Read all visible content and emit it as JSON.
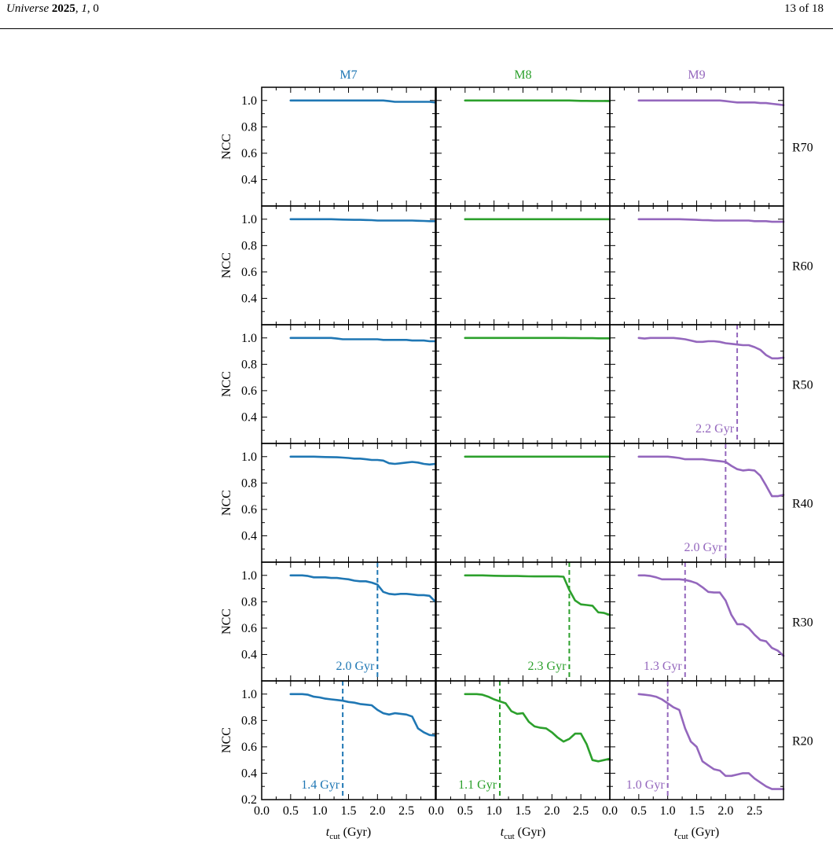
{
  "header": {
    "journal": "Universe",
    "year": "2025",
    "volume": "1",
    "article": "0",
    "page": "13 of 18"
  },
  "figure": {
    "columns": [
      {
        "label": "M7",
        "color": "#1f77b4"
      },
      {
        "label": "M8",
        "color": "#2ca02c"
      },
      {
        "label": "M9",
        "color": "#9467bd"
      }
    ],
    "rows": [
      "R70",
      "R60",
      "R50",
      "R40",
      "R30",
      "R20"
    ],
    "ylabel": "NCC",
    "xlabel_main": "t",
    "xlabel_sub": "cut",
    "xlabel_unit": "(Gyr)"
  },
  "chart_data": {
    "type": "line",
    "xlim": [
      0,
      3.0
    ],
    "ylim": [
      0.2,
      1.1
    ],
    "xticks": [
      0.0,
      0.5,
      1.0,
      1.5,
      2.0,
      2.5
    ],
    "xtick_labels": [
      "0.0",
      "0.5",
      "1.0",
      "1.5",
      "2.0",
      "2.5"
    ],
    "yticks_labeled": [
      1.0,
      0.8,
      0.6,
      0.4
    ],
    "bottom_row_yticks": [
      1.0,
      0.8,
      0.6,
      0.4,
      0.2
    ],
    "x": [
      0.5,
      0.6,
      0.7,
      0.8,
      0.9,
      1.0,
      1.1,
      1.2,
      1.3,
      1.4,
      1.5,
      1.6,
      1.7,
      1.8,
      1.9,
      2.0,
      2.1,
      2.2,
      2.3,
      2.4,
      2.5,
      2.6,
      2.7,
      2.8,
      2.9,
      3.0
    ],
    "panels": [
      {
        "row": "R70",
        "col": "M7",
        "y": [
          1.0,
          1.0,
          1.0,
          1.0,
          1.0,
          1.0,
          1.0,
          1.0,
          1.0,
          1.0,
          1.0,
          1.0,
          1.0,
          1.0,
          1.0,
          1.0,
          1.0,
          0.995,
          0.99,
          0.99,
          0.99,
          0.99,
          0.99,
          0.99,
          0.99,
          0.985
        ]
      },
      {
        "row": "R70",
        "col": "M8",
        "y": [
          1.0,
          1.0,
          1.0,
          1.0,
          1.0,
          1.0,
          1.0,
          1.0,
          1.0,
          1.0,
          1.0,
          1.0,
          1.0,
          1.0,
          1.0,
          1.0,
          1.0,
          1.0,
          1.0,
          0.998,
          0.997,
          0.997,
          0.996,
          0.996,
          0.996,
          0.995
        ]
      },
      {
        "row": "R70",
        "col": "M9",
        "y": [
          1.0,
          1.0,
          1.0,
          1.0,
          1.0,
          1.0,
          1.0,
          1.0,
          1.0,
          1.0,
          1.0,
          1.0,
          1.0,
          1.0,
          1.0,
          0.995,
          0.99,
          0.985,
          0.985,
          0.985,
          0.985,
          0.98,
          0.98,
          0.975,
          0.97,
          0.965
        ]
      },
      {
        "row": "R60",
        "col": "M7",
        "y": [
          1.0,
          1.0,
          1.0,
          1.0,
          1.0,
          1.0,
          1.0,
          1.0,
          0.998,
          0.997,
          0.996,
          0.995,
          0.995,
          0.994,
          0.993,
          0.99,
          0.99,
          0.99,
          0.99,
          0.99,
          0.99,
          0.99,
          0.988,
          0.987,
          0.985,
          0.985
        ]
      },
      {
        "row": "R60",
        "col": "M8",
        "y": [
          1.0,
          1.0,
          1.0,
          1.0,
          1.0,
          1.0,
          1.0,
          1.0,
          1.0,
          1.0,
          1.0,
          1.0,
          1.0,
          1.0,
          1.0,
          1.0,
          1.0,
          1.0,
          1.0,
          1.0,
          1.0,
          1.0,
          1.0,
          1.0,
          1.0,
          1.0
        ]
      },
      {
        "row": "R60",
        "col": "M9",
        "y": [
          1.0,
          1.0,
          1.0,
          1.0,
          1.0,
          1.0,
          1.0,
          1.0,
          0.998,
          0.997,
          0.995,
          0.993,
          0.992,
          0.99,
          0.99,
          0.99,
          0.99,
          0.99,
          0.99,
          0.99,
          0.985,
          0.985,
          0.985,
          0.98,
          0.98,
          0.98
        ]
      },
      {
        "row": "R50",
        "col": "M7",
        "y": [
          1.0,
          1.0,
          1.0,
          1.0,
          1.0,
          1.0,
          1.0,
          1.0,
          0.995,
          0.99,
          0.99,
          0.99,
          0.99,
          0.99,
          0.99,
          0.99,
          0.985,
          0.985,
          0.985,
          0.985,
          0.985,
          0.98,
          0.98,
          0.98,
          0.975,
          0.975
        ]
      },
      {
        "row": "R50",
        "col": "M8",
        "y": [
          1.0,
          1.0,
          1.0,
          1.0,
          1.0,
          1.0,
          1.0,
          1.0,
          1.0,
          1.0,
          1.0,
          1.0,
          1.0,
          1.0,
          1.0,
          1.0,
          1.0,
          1.0,
          0.999,
          0.999,
          0.998,
          0.998,
          0.998,
          0.997,
          0.997,
          0.997
        ]
      },
      {
        "row": "R50",
        "col": "M9",
        "y": [
          1.0,
          0.995,
          1.0,
          1.0,
          1.0,
          1.0,
          1.0,
          0.995,
          0.99,
          0.98,
          0.97,
          0.97,
          0.975,
          0.975,
          0.97,
          0.96,
          0.955,
          0.95,
          0.945,
          0.945,
          0.93,
          0.91,
          0.87,
          0.845,
          0.845,
          0.85
        ]
      },
      {
        "row": "R40",
        "col": "M7",
        "y": [
          1.0,
          1.0,
          1.0,
          1.0,
          1.0,
          0.998,
          0.997,
          0.996,
          0.995,
          0.993,
          0.99,
          0.985,
          0.985,
          0.98,
          0.975,
          0.975,
          0.97,
          0.95,
          0.945,
          0.95,
          0.955,
          0.96,
          0.955,
          0.945,
          0.94,
          0.945
        ]
      },
      {
        "row": "R40",
        "col": "M8",
        "y": [
          1.0,
          1.0,
          1.0,
          1.0,
          1.0,
          1.0,
          1.0,
          1.0,
          1.0,
          1.0,
          1.0,
          1.0,
          1.0,
          1.0,
          1.0,
          1.0,
          1.0,
          1.0,
          1.0,
          1.0,
          1.0,
          1.0,
          1.0,
          1.0,
          1.0,
          1.0
        ]
      },
      {
        "row": "R40",
        "col": "M9",
        "y": [
          1.0,
          1.0,
          1.0,
          1.0,
          1.0,
          1.0,
          0.995,
          0.99,
          0.98,
          0.98,
          0.98,
          0.98,
          0.975,
          0.97,
          0.965,
          0.96,
          0.93,
          0.905,
          0.895,
          0.9,
          0.895,
          0.855,
          0.78,
          0.7,
          0.7,
          0.71
        ]
      },
      {
        "row": "R30",
        "col": "M7",
        "y": [
          1.0,
          1.0,
          1.0,
          0.995,
          0.985,
          0.985,
          0.985,
          0.98,
          0.98,
          0.975,
          0.97,
          0.96,
          0.955,
          0.955,
          0.945,
          0.93,
          0.875,
          0.86,
          0.855,
          0.86,
          0.86,
          0.855,
          0.85,
          0.85,
          0.845,
          0.8
        ]
      },
      {
        "row": "R30",
        "col": "M8",
        "y": [
          1.0,
          1.0,
          1.0,
          1.0,
          0.998,
          0.997,
          0.996,
          0.995,
          0.995,
          0.995,
          0.994,
          0.993,
          0.992,
          0.992,
          0.992,
          0.992,
          0.992,
          0.99,
          0.89,
          0.81,
          0.78,
          0.775,
          0.77,
          0.72,
          0.715,
          0.7
        ]
      },
      {
        "row": "R30",
        "col": "M9",
        "y": [
          1.0,
          1.0,
          0.995,
          0.985,
          0.97,
          0.97,
          0.97,
          0.97,
          0.965,
          0.955,
          0.94,
          0.91,
          0.875,
          0.87,
          0.87,
          0.81,
          0.7,
          0.63,
          0.63,
          0.6,
          0.55,
          0.51,
          0.5,
          0.45,
          0.43,
          0.39
        ]
      },
      {
        "row": "R20",
        "col": "M7",
        "y": [
          1.0,
          1.0,
          1.0,
          0.995,
          0.98,
          0.975,
          0.965,
          0.96,
          0.955,
          0.95,
          0.94,
          0.935,
          0.925,
          0.92,
          0.915,
          0.88,
          0.855,
          0.845,
          0.855,
          0.85,
          0.845,
          0.83,
          0.74,
          0.71,
          0.69,
          0.685
        ]
      },
      {
        "row": "R20",
        "col": "M8",
        "y": [
          1.0,
          1.0,
          1.0,
          0.995,
          0.98,
          0.96,
          0.945,
          0.93,
          0.87,
          0.85,
          0.855,
          0.79,
          0.755,
          0.745,
          0.74,
          0.71,
          0.67,
          0.64,
          0.66,
          0.7,
          0.7,
          0.62,
          0.5,
          0.49,
          0.5,
          0.51
        ]
      },
      {
        "row": "R20",
        "col": "M9",
        "y": [
          1.0,
          0.995,
          0.99,
          0.98,
          0.96,
          0.93,
          0.9,
          0.88,
          0.74,
          0.64,
          0.6,
          0.49,
          0.46,
          0.43,
          0.42,
          0.38,
          0.38,
          0.39,
          0.4,
          0.4,
          0.36,
          0.33,
          0.3,
          0.28,
          0.28,
          0.28
        ]
      }
    ],
    "markers": [
      {
        "row": "R50",
        "col": "M9",
        "x": 2.2,
        "label": "2.2 Gyr"
      },
      {
        "row": "R40",
        "col": "M9",
        "x": 2.0,
        "label": "2.0 Gyr"
      },
      {
        "row": "R30",
        "col": "M7",
        "x": 2.0,
        "label": "2.0 Gyr"
      },
      {
        "row": "R30",
        "col": "M8",
        "x": 2.3,
        "label": "2.3 Gyr"
      },
      {
        "row": "R30",
        "col": "M9",
        "x": 1.3,
        "label": "1.3 Gyr"
      },
      {
        "row": "R20",
        "col": "M7",
        "x": 1.4,
        "label": "1.4 Gyr"
      },
      {
        "row": "R20",
        "col": "M8",
        "x": 1.1,
        "label": "1.1 Gyr"
      },
      {
        "row": "R20",
        "col": "M9",
        "x": 1.0,
        "label": "1.0 Gyr"
      }
    ]
  }
}
